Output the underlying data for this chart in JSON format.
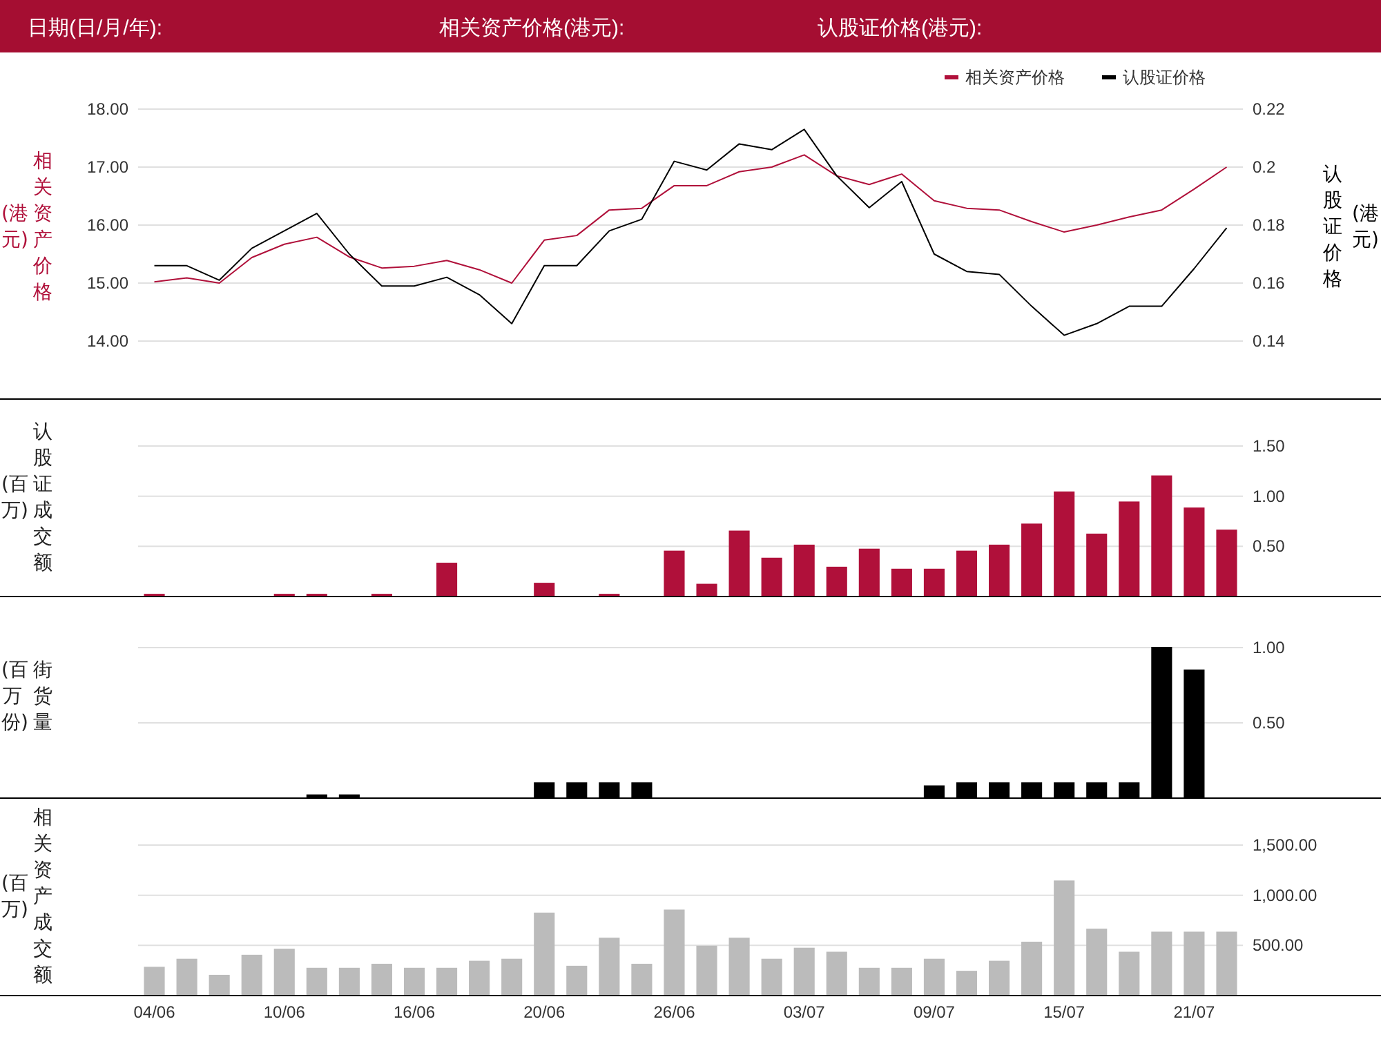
{
  "chart_data": [
    {
      "type": "line",
      "annotations": [
        "日期(日/月/年):",
        "相关资产价格(港元):",
        "认股证价格(港元):"
      ],
      "categories": [
        null,
        null,
        null,
        null,
        null,
        null,
        null,
        null,
        null,
        null,
        null,
        null,
        null,
        null,
        null,
        null,
        null,
        null,
        null,
        null,
        null,
        null,
        null,
        null,
        null,
        null,
        null,
        null,
        null,
        null,
        null,
        null,
        null,
        null
      ],
      "series": [
        {
          "name": "相关资产价格",
          "color": "#b0103a",
          "values": [
            15.02,
            15.09,
            15.0,
            15.44,
            15.67,
            15.79,
            15.45,
            15.26,
            15.29,
            15.39,
            15.23,
            15.0,
            15.74,
            15.82,
            16.26,
            16.29,
            16.68,
            16.68,
            16.92,
            17.0,
            17.21,
            16.85,
            16.7,
            16.88,
            16.42,
            16.29,
            16.26,
            16.06,
            15.88,
            16.0,
            16.14,
            16.26,
            16.62,
            17.0
          ]
        },
        {
          "name": "认股证价格",
          "color": "#000000",
          "axis": "y2",
          "values": [
            0.166,
            0.166,
            0.161,
            0.172,
            0.178,
            0.184,
            0.17,
            0.159,
            0.159,
            0.162,
            0.156,
            0.146,
            0.166,
            0.166,
            0.178,
            0.182,
            0.202,
            0.199,
            0.208,
            0.206,
            0.213,
            0.197,
            0.186,
            0.195,
            0.17,
            0.164,
            0.163,
            0.152,
            0.142,
            0.146,
            0.152,
            0.152,
            0.165,
            0.179
          ]
        }
      ],
      "ylabel": "相关资产价格(港元)",
      "y2label": "认股证价格(港元)",
      "ylim": [
        13,
        18
      ],
      "yticks": [
        {
          "value": 14,
          "label": "14.00"
        },
        {
          "value": 15,
          "label": "15.00"
        },
        {
          "value": 16,
          "label": "16.00"
        },
        {
          "value": 17,
          "label": "17.00"
        },
        {
          "value": 18,
          "label": "18.00"
        }
      ],
      "y2lim": [
        0.12,
        0.22
      ],
      "y2ticks": [
        0.14,
        0.16,
        0.18,
        0.2,
        0.22
      ],
      "grid": "y",
      "legend": "top right"
    },
    {
      "type": "bar",
      "ylabel": "认股证成交额(百万)",
      "categories": [
        null,
        null,
        null,
        null,
        null,
        null,
        null,
        null,
        null,
        null,
        null,
        null,
        null,
        null,
        null,
        null,
        null,
        null,
        null,
        null,
        null,
        null,
        null,
        null,
        null,
        null,
        null,
        null,
        null,
        null,
        null,
        null,
        null,
        null
      ],
      "series": [
        {
          "color": "#b0103a",
          "axis": "y2",
          "values": [
            0.02,
            0,
            0,
            0,
            0.02,
            0.02,
            0,
            0.02,
            0,
            0.33,
            0,
            0,
            0.13,
            0,
            0.02,
            0,
            0.45,
            0.12,
            0.65,
            0.38,
            0.51,
            0.29,
            0.47,
            0.27,
            0.27,
            0.45,
            0.51,
            0.72,
            1.04,
            0.62,
            0.94,
            1.2,
            0.88,
            0.66
          ]
        }
      ],
      "y2lim": [
        0,
        1.5
      ],
      "y2ticks": [
        {
          "value": 0.5,
          "label": "0.50"
        },
        {
          "value": 1,
          "label": "1.00"
        },
        {
          "value": 1.5,
          "label": "1.50"
        }
      ],
      "grid": "y"
    },
    {
      "type": "bar",
      "ylabel": "街货量(百万份)",
      "categories": [
        null,
        null,
        null,
        null,
        null,
        null,
        null,
        null,
        null,
        null,
        null,
        null,
        null,
        null,
        null,
        null,
        null,
        null,
        null,
        null,
        null,
        null,
        null,
        null,
        null,
        null,
        null,
        null,
        null,
        null,
        null,
        null,
        null,
        null
      ],
      "series": [
        {
          "color": "#000000",
          "axis": "y2",
          "values": [
            0,
            0,
            0,
            0,
            0,
            0.02,
            0.02,
            0,
            0,
            0,
            0,
            0,
            0.1,
            0.1,
            0.1,
            0.1,
            0,
            0,
            0,
            0,
            0,
            0,
            0,
            0,
            0.08,
            0.1,
            0.1,
            0.1,
            0.1,
            0.1,
            0.1,
            1.0,
            0.85,
            0
          ]
        }
      ],
      "y2lim": [
        0,
        1.0
      ],
      "y2ticks": [
        {
          "value": 0.5,
          "label": "0.50"
        },
        {
          "value": 1,
          "label": "1.00"
        }
      ],
      "grid": "y"
    },
    {
      "type": "bar",
      "ylabel": "相关资产成交额(百万)",
      "categories": [
        "04/06",
        null,
        null,
        null,
        "10/06",
        null,
        null,
        null,
        "16/06",
        null,
        null,
        null,
        "20/06",
        null,
        null,
        null,
        "26/06",
        null,
        null,
        null,
        "03/07",
        null,
        null,
        null,
        "09/07",
        null,
        null,
        null,
        "15/07",
        null,
        null,
        null,
        "21/07",
        null
      ],
      "series": [
        {
          "color": "#bbbbbb",
          "axis": "y2",
          "values": [
            280,
            360,
            200,
            400,
            460,
            270,
            270,
            310,
            270,
            270,
            340,
            360,
            820,
            290,
            570,
            310,
            850,
            490,
            570,
            360,
            470,
            430,
            270,
            270,
            360,
            240,
            340,
            530,
            1140,
            660,
            430,
            630,
            630,
            630
          ]
        }
      ],
      "y2lim": [
        0,
        1500
      ],
      "y2ticks": [
        {
          "value": 500,
          "label": "500.00"
        },
        {
          "value": 1000,
          "label": "1,000.00"
        },
        {
          "value": 1500,
          "label": "1,500.00"
        }
      ],
      "grid": "y"
    }
  ]
}
